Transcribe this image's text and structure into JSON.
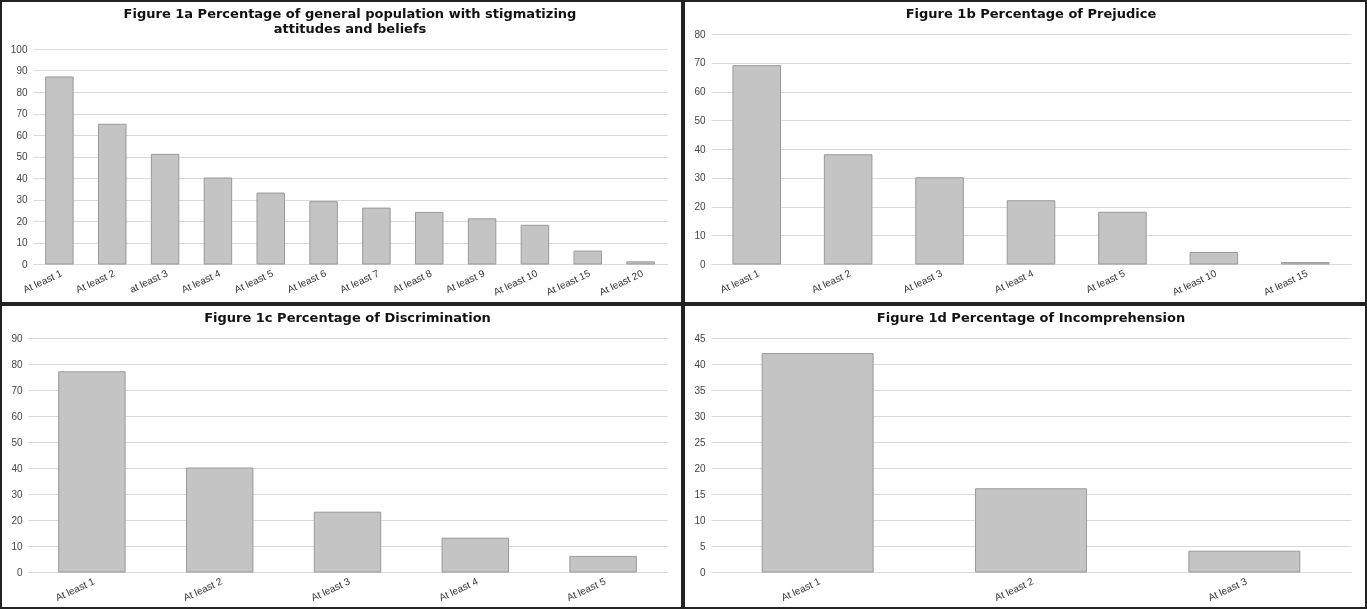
{
  "chart_data": [
    {
      "type": "bar",
      "title": "Figure 1a Percentage of general population with stigmatizing attitudes and beliefs",
      "categories": [
        "At least 1",
        "At least 2",
        "at least 3",
        "At least 4",
        "At least 5",
        "At least 6",
        "At least 7",
        "At least 8",
        "At least 9",
        "At least 10",
        "At least 15",
        "At least 20"
      ],
      "values": [
        87,
        65,
        51,
        40,
        33,
        29,
        26,
        24,
        21,
        18,
        6,
        1
      ],
      "color": "#c4c4c4",
      "ylim": [
        0,
        100
      ],
      "yticks": [
        0,
        10,
        20,
        30,
        40,
        50,
        60,
        70,
        80,
        90,
        100
      ],
      "grid": "y"
    },
    {
      "type": "bar",
      "title": "Figure 1b Percentage of Prejudice",
      "categories": [
        "At least 1",
        "At least 2",
        "At least 3",
        "At least 4",
        "At least 5",
        "At least 10",
        "At least 15"
      ],
      "values": [
        69,
        38,
        30,
        22,
        18,
        4,
        0.5
      ],
      "color": "#c4c4c4",
      "ylim": [
        0,
        80
      ],
      "yticks": [
        0,
        10,
        20,
        30,
        40,
        50,
        60,
        70,
        80
      ],
      "grid": "y"
    },
    {
      "type": "bar",
      "title": "Figure 1c Percentage of Discrimination",
      "categories": [
        "At least 1",
        "At least 2",
        "At least 3",
        "At least 4",
        "At least 5"
      ],
      "values": [
        77,
        40,
        23,
        13,
        6
      ],
      "color": "#c4c4c4",
      "ylim": [
        0,
        90
      ],
      "yticks": [
        0,
        10,
        20,
        30,
        40,
        50,
        60,
        70,
        80,
        90
      ],
      "grid": "y"
    },
    {
      "type": "bar",
      "title": "Figure 1d Percentage of Incomprehension",
      "categories": [
        "At least 1",
        "At least 2",
        "At least 3"
      ],
      "values": [
        42,
        16,
        4
      ],
      "color": "#c4c4c4",
      "ylim": [
        0,
        45
      ],
      "yticks": [
        0,
        5,
        10,
        15,
        20,
        25,
        30,
        35,
        40,
        45
      ],
      "grid": "y"
    }
  ]
}
